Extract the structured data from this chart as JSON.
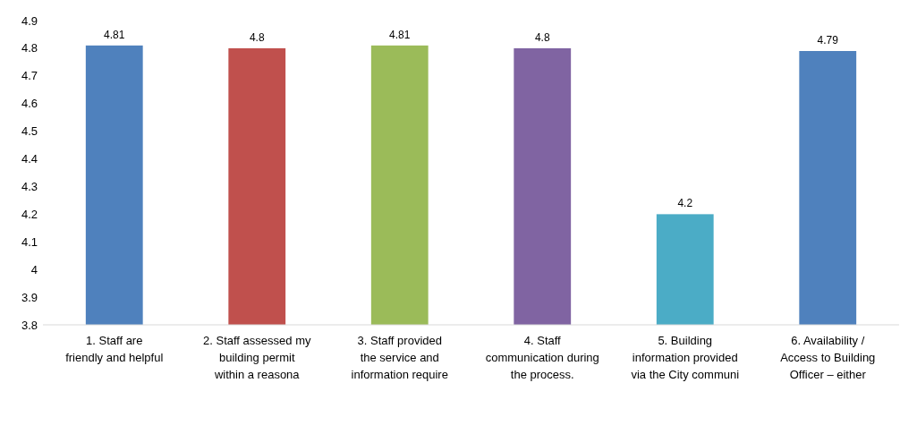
{
  "chart_data": {
    "type": "bar",
    "categories": [
      "1. Staff are friendly and helpful",
      "2. Staff assessed my building permit within a reasona",
      "3. Staff provided the service and information require",
      "4. Staff communication during the process.",
      "5. Building information provided via the City communi",
      "6. Availability / Access to Building Officer – either"
    ],
    "values": [
      4.81,
      4.8,
      4.81,
      4.8,
      4.2,
      4.79
    ],
    "colors": [
      "#4f81bd",
      "#c0504d",
      "#9bbb59",
      "#8064a2",
      "#4bacc6",
      "#4f81bd"
    ],
    "ylim": [
      3.8,
      4.9
    ],
    "yticks": [
      3.8,
      3.9,
      4,
      4.1,
      4.2,
      4.3,
      4.4,
      4.5,
      4.6,
      4.7,
      4.8,
      4.9
    ],
    "data_labels": true
  }
}
